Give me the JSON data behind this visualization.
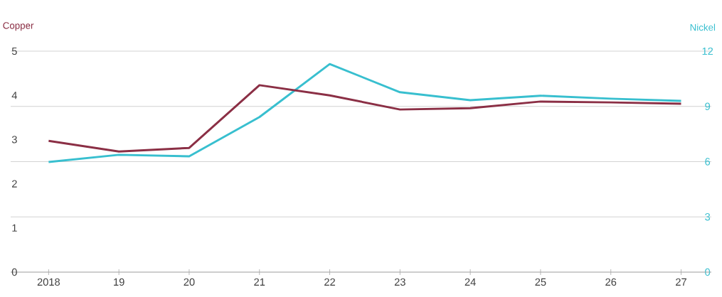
{
  "chart_data": {
    "type": "line",
    "ylabel": "Copper",
    "y2label": "Nickel",
    "categories": [
      "2018",
      "19",
      "20",
      "21",
      "22",
      "23",
      "24",
      "25",
      "26",
      "27"
    ],
    "series": [
      {
        "color": "#8b2f45",
        "values": [
          2.97,
          2.73,
          2.81,
          4.23,
          4.0,
          3.68,
          3.71,
          3.86,
          3.84,
          3.81
        ]
      },
      {
        "color": "#38bfcf",
        "axis": "y2",
        "values": [
          5.98,
          6.37,
          6.29,
          8.42,
          11.3,
          9.77,
          9.34,
          9.58,
          9.42,
          9.3
        ]
      }
    ],
    "ylim": [
      0,
      5
    ],
    "yticks": [
      0,
      1,
      2,
      3,
      4,
      5
    ],
    "y2lim": [
      0,
      12
    ],
    "y2ticks": [
      0,
      3,
      6,
      9,
      12
    ],
    "grid": "y"
  }
}
